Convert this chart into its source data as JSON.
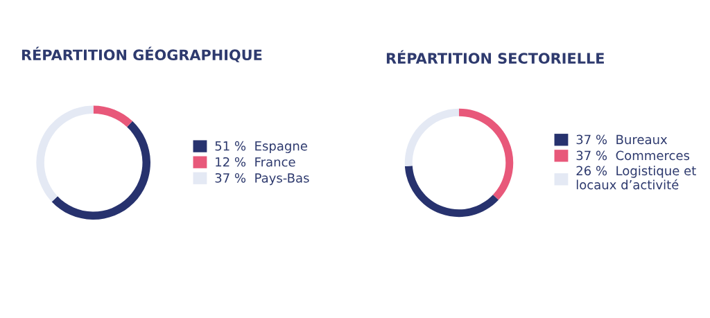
{
  "chart_data": [
    {
      "type": "donut",
      "title": "RÉPARTITION GÉOGRAPHIQUE",
      "categories": [
        "Espagne",
        "France",
        "Pays-Bas"
      ],
      "values": [
        51,
        12,
        37
      ],
      "value_labels": [
        "51 %",
        "12 %",
        "37 %"
      ],
      "colors": [
        "#27326e",
        "#e8587a",
        "#e4e9f4"
      ],
      "legend": "right"
    },
    {
      "type": "donut",
      "title": "RÉPARTITION SECTORIELLE",
      "categories": [
        "Bureaux",
        "Commerces",
        "Logistique et\nlocaux d’activité"
      ],
      "values": [
        37,
        37,
        26
      ],
      "value_labels": [
        "37 %",
        "37 %",
        "26 %"
      ],
      "colors": [
        "#27326e",
        "#e8587a",
        "#e4e9f4"
      ],
      "legend": "right"
    }
  ]
}
